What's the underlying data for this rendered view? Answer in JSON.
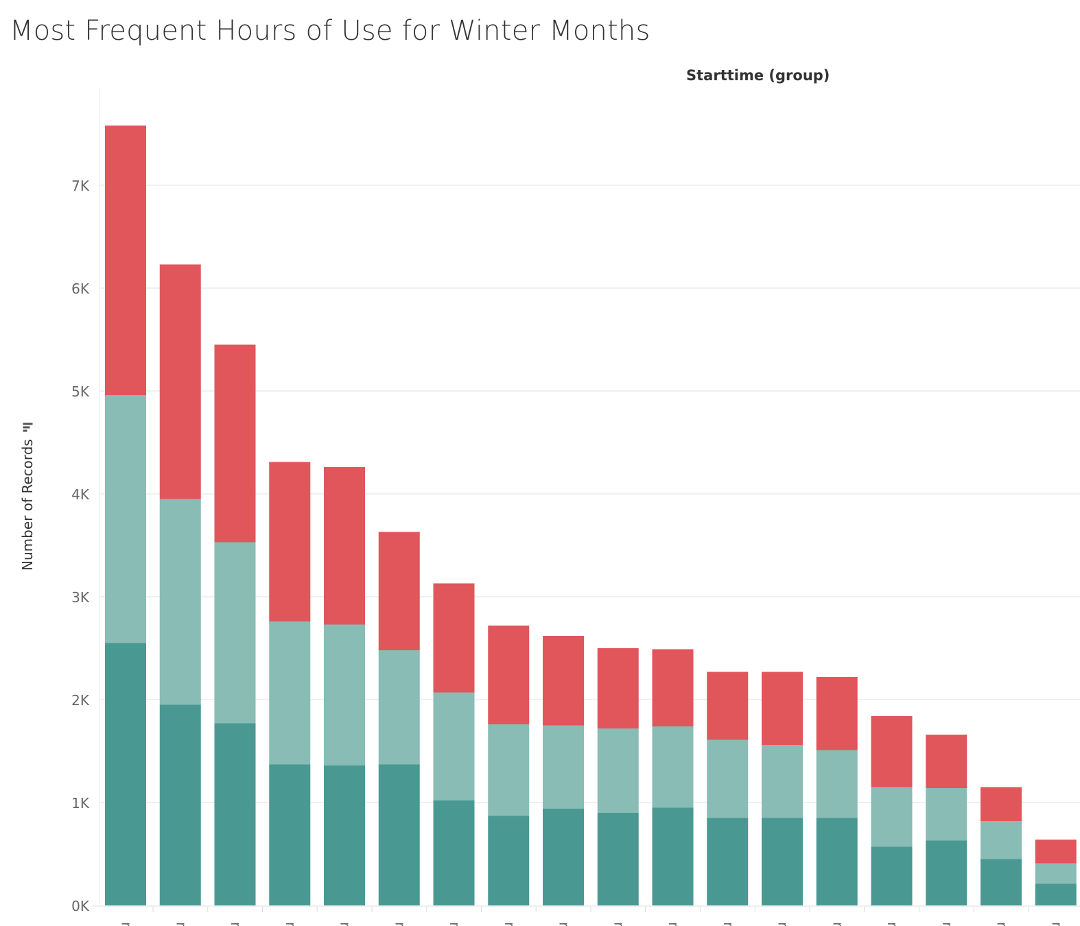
{
  "title": "Most Frequent Hours of Use for Winter Months",
  "column_header": "Starttime (group)",
  "y_axis": {
    "label": "Number of Records",
    "sort_icon": "sort-descending-icon"
  },
  "colors": {
    "dark_teal": "#4a9892",
    "light_teal": "#88bcb4",
    "red": "#e1565b",
    "grid": "#ececec",
    "axis_text": "#666666"
  },
  "chart_data": {
    "type": "bar",
    "stacked": true,
    "title": "Most Frequent Hours of Use for Winter Months",
    "xlabel": "",
    "ylabel": "Number of Records",
    "ylim": [
      0,
      7600
    ],
    "yticks": [
      0,
      1000,
      2000,
      3000,
      4000,
      5000,
      6000,
      7000
    ],
    "ytick_labels": [
      "0K",
      "1K",
      "2K",
      "3K",
      "4K",
      "5K",
      "6K",
      "7K"
    ],
    "categories": [
      "m",
      "m",
      "m",
      "m",
      "m",
      "m",
      "m",
      "m",
      "m",
      "m",
      "m",
      "m",
      "m",
      "m",
      "m",
      "m",
      "m",
      "m"
    ],
    "grid": "horizontal",
    "series": [
      {
        "color": "#4a9892",
        "values": [
          2550,
          1950,
          1770,
          1370,
          1360,
          1370,
          1020,
          870,
          940,
          900,
          950,
          850,
          850,
          850,
          570,
          630,
          450,
          210
        ]
      },
      {
        "color": "#88bcb4",
        "values": [
          2410,
          2000,
          1760,
          1390,
          1370,
          1110,
          1050,
          890,
          810,
          820,
          790,
          760,
          710,
          660,
          580,
          510,
          370,
          200
        ]
      },
      {
        "color": "#e1565b",
        "values": [
          2620,
          2280,
          1920,
          1550,
          1530,
          1150,
          1060,
          960,
          870,
          780,
          750,
          660,
          710,
          710,
          690,
          520,
          330,
          230
        ]
      }
    ]
  }
}
